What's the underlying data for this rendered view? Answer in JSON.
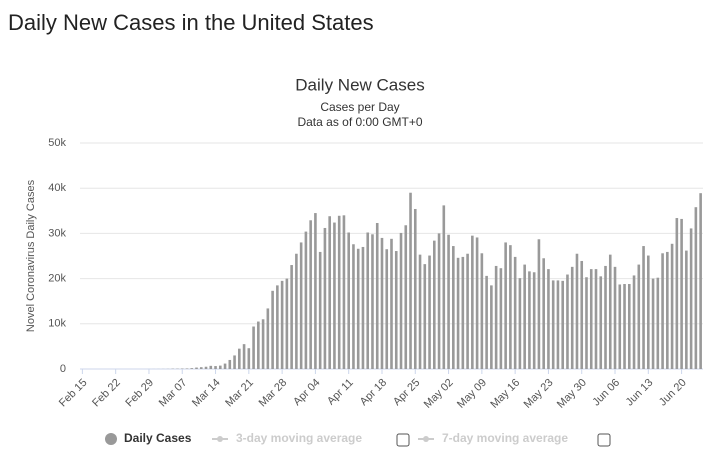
{
  "heading": "Daily New Cases in the United States",
  "chart_data": {
    "type": "bar",
    "title": "Daily New Cases",
    "subtitle": [
      "Cases per Day",
      "Data as of 0:00 GMT+0"
    ],
    "y_label": "Novel Coronavirus Daily Cases",
    "categories": [
      "Feb 15",
      null,
      null,
      null,
      null,
      null,
      null,
      "Feb 22",
      null,
      null,
      null,
      null,
      null,
      null,
      "Feb 29",
      null,
      null,
      null,
      null,
      null,
      null,
      "Mar 07",
      null,
      null,
      null,
      null,
      null,
      null,
      "Mar 14",
      null,
      null,
      null,
      null,
      null,
      null,
      "Mar 21",
      null,
      null,
      null,
      null,
      null,
      null,
      "Mar 28",
      null,
      null,
      null,
      null,
      null,
      null,
      "Apr 04",
      null,
      null,
      null,
      null,
      null,
      null,
      "Apr 11",
      null,
      null,
      null,
      null,
      null,
      null,
      "Apr 18",
      null,
      null,
      null,
      null,
      null,
      null,
      "Apr 25",
      null,
      null,
      null,
      null,
      null,
      null,
      "May 02",
      null,
      null,
      null,
      null,
      null,
      null,
      "May 09",
      null,
      null,
      null,
      null,
      null,
      null,
      "May 16",
      null,
      null,
      null,
      null,
      null,
      null,
      "May 23",
      null,
      null,
      null,
      null,
      null,
      null,
      "May 30",
      null,
      null,
      null,
      null,
      null,
      null,
      "Jun 06",
      null,
      null,
      null,
      null,
      null,
      null,
      "Jun 13",
      null,
      null,
      null,
      null,
      null,
      null,
      "Jun 20",
      null,
      null,
      null,
      null
    ],
    "series": [
      {
        "name": "Daily Cases",
        "color": "#999999",
        "values": [
          0,
          0,
          0,
          0,
          0,
          0,
          1,
          0,
          0,
          0,
          1,
          0,
          1,
          0,
          5,
          8,
          12,
          20,
          30,
          70,
          70,
          100,
          120,
          190,
          320,
          400,
          500,
          700,
          650,
          750,
          1200,
          2000,
          3000,
          4500,
          5500,
          4600,
          9400,
          10500,
          11000,
          13400,
          17300,
          18500,
          19500,
          20000,
          23000,
          25500,
          28000,
          30400,
          32900,
          34500,
          25900,
          31200,
          33800,
          32400,
          33900,
          34000,
          30200,
          27600,
          26600,
          27000,
          30200,
          29800,
          32300,
          29000,
          26500,
          28800,
          26100,
          30100,
          31800,
          39000,
          35400,
          25300,
          23200,
          25100,
          28400,
          30000,
          36200,
          29700,
          27200,
          24600,
          24800,
          25500,
          29500,
          29100,
          25600,
          20600,
          18500,
          22800,
          22300,
          28000,
          27400,
          24800,
          20100,
          23100,
          21600,
          21400,
          28700,
          24500,
          22100,
          19600,
          19600,
          19500,
          20900,
          22600,
          25500,
          23900,
          20300,
          22100,
          22100,
          20500,
          22800,
          25300,
          22600,
          18700,
          18800,
          18800,
          20700,
          23100,
          27200,
          25100,
          20000,
          20200,
          25600,
          25900,
          27700,
          33400,
          33200,
          26200,
          31100,
          35800,
          38900
        ]
      }
    ],
    "inactive_legend": [
      "3-day moving average",
      "7-day moving average"
    ],
    "ylim": [
      0,
      50000
    ],
    "yticks": [
      0,
      {
        "value": 10000,
        "label": "10k"
      },
      {
        "value": 20000,
        "label": "20k"
      },
      {
        "value": 30000,
        "label": "30k"
      },
      {
        "value": 40000,
        "label": "40k"
      },
      {
        "value": 50000,
        "label": "50k"
      }
    ],
    "grid": true
  }
}
